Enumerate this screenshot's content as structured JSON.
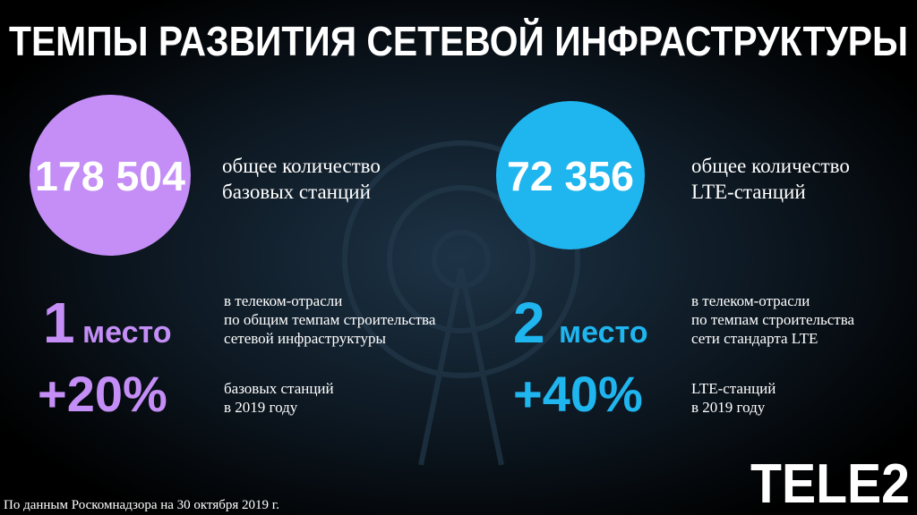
{
  "header": {
    "title": "ТЕМПЫ РАЗВИТИЯ СЕТЕВОЙ ИНФРАСТРУКТУРЫ"
  },
  "blocks": [
    {
      "total": "178 504",
      "total_caption": [
        "общее количество",
        "базовых станций"
      ],
      "rank_number": "1",
      "rank_word": "место",
      "rank_caption": [
        "в телеком-отрасли",
        "по общим темпам строительства",
        "сетевой инфраструктуры"
      ],
      "growth": "+20%",
      "growth_caption": [
        "базовых станций",
        "в 2019 году"
      ]
    },
    {
      "total": "72 356",
      "total_caption": [
        "общее количество",
        "LTE-станций"
      ],
      "rank_number": "2",
      "rank_word": "место",
      "rank_caption": [
        "в телеком-отрасли",
        "по темпам строительства",
        "сети стандарта LTE"
      ],
      "growth": "+40%",
      "growth_caption": [
        "LTE-станций",
        "в 2019 году"
      ]
    }
  ],
  "footer": {
    "source": "По данным Роскомнадзора на 30 октября 2019 г.",
    "logo": "TELE2"
  }
}
